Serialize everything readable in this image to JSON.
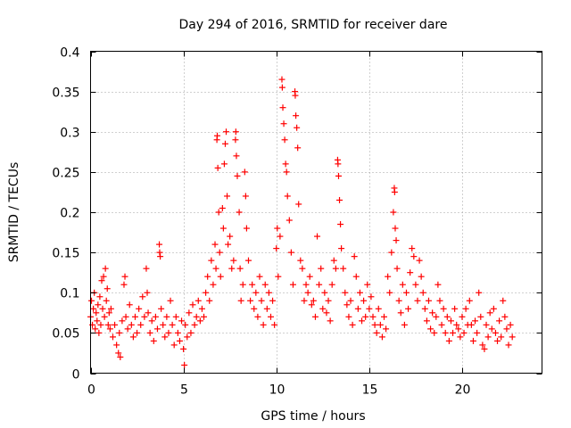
{
  "chart_data": {
    "type": "scatter",
    "title": "Day 294 of 2016, SRMTID for receiver dare",
    "xlabel": "GPS time / hours",
    "ylabel": "SRMTID / TECUs",
    "xlim": [
      0,
      24.3
    ],
    "ylim": [
      0,
      0.4
    ],
    "x_ticks": [
      0,
      5,
      10,
      15,
      20
    ],
    "x_tick_labels": [
      "0",
      "5",
      "10",
      "15",
      "20"
    ],
    "y_ticks": [
      0,
      0.05,
      0.1,
      0.15,
      0.2,
      0.25,
      0.3,
      0.35,
      0.4
    ],
    "y_tick_labels": [
      "0",
      "0.05",
      "0.1",
      "0.15",
      "0.2",
      "0.25",
      "0.3",
      "0.35",
      "0.4"
    ],
    "grid": true,
    "marker": "+",
    "series": [
      {
        "name": "SRMTID",
        "color": "#ff0000",
        "points": [
          [
            0.0,
            0.07
          ],
          [
            0.05,
            0.09
          ],
          [
            0.1,
            0.06
          ],
          [
            0.15,
            0.08
          ],
          [
            0.2,
            0.1
          ],
          [
            0.25,
            0.055
          ],
          [
            0.3,
            0.075
          ],
          [
            0.35,
            0.065
          ],
          [
            0.4,
            0.085
          ],
          [
            0.45,
            0.05
          ],
          [
            0.5,
            0.095
          ],
          [
            0.55,
            0.06
          ],
          [
            0.6,
            0.115
          ],
          [
            0.65,
            0.08
          ],
          [
            0.7,
            0.12
          ],
          [
            0.75,
            0.07
          ],
          [
            0.8,
            0.13
          ],
          [
            0.85,
            0.09
          ],
          [
            0.9,
            0.105
          ],
          [
            0.95,
            0.06
          ],
          [
            1.0,
            0.075
          ],
          [
            1.05,
            0.055
          ],
          [
            1.1,
            0.08
          ],
          [
            1.2,
            0.045
          ],
          [
            1.3,
            0.06
          ],
          [
            1.4,
            0.035
          ],
          [
            1.5,
            0.025
          ],
          [
            1.55,
            0.05
          ],
          [
            1.6,
            0.02
          ],
          [
            1.7,
            0.065
          ],
          [
            1.8,
            0.11
          ],
          [
            1.85,
            0.12
          ],
          [
            1.9,
            0.07
          ],
          [
            2.0,
            0.055
          ],
          [
            2.1,
            0.085
          ],
          [
            2.2,
            0.06
          ],
          [
            2.3,
            0.045
          ],
          [
            2.4,
            0.07
          ],
          [
            2.5,
            0.05
          ],
          [
            2.6,
            0.08
          ],
          [
            2.7,
            0.06
          ],
          [
            2.8,
            0.095
          ],
          [
            2.9,
            0.07
          ],
          [
            3.0,
            0.13
          ],
          [
            3.05,
            0.1
          ],
          [
            3.1,
            0.075
          ],
          [
            3.2,
            0.05
          ],
          [
            3.3,
            0.065
          ],
          [
            3.4,
            0.04
          ],
          [
            3.5,
            0.07
          ],
          [
            3.6,
            0.055
          ],
          [
            3.7,
            0.16
          ],
          [
            3.72,
            0.15
          ],
          [
            3.75,
            0.145
          ],
          [
            3.8,
            0.08
          ],
          [
            3.9,
            0.06
          ],
          [
            4.0,
            0.045
          ],
          [
            4.1,
            0.07
          ],
          [
            4.2,
            0.05
          ],
          [
            4.3,
            0.09
          ],
          [
            4.4,
            0.06
          ],
          [
            4.5,
            0.035
          ],
          [
            4.6,
            0.07
          ],
          [
            4.7,
            0.05
          ],
          [
            4.8,
            0.04
          ],
          [
            4.9,
            0.065
          ],
          [
            5.0,
            0.03
          ],
          [
            5.05,
            0.01
          ],
          [
            5.1,
            0.06
          ],
          [
            5.2,
            0.045
          ],
          [
            5.3,
            0.075
          ],
          [
            5.4,
            0.05
          ],
          [
            5.5,
            0.085
          ],
          [
            5.6,
            0.06
          ],
          [
            5.7,
            0.07
          ],
          [
            5.8,
            0.09
          ],
          [
            5.9,
            0.065
          ],
          [
            6.0,
            0.08
          ],
          [
            6.1,
            0.07
          ],
          [
            6.2,
            0.1
          ],
          [
            6.3,
            0.12
          ],
          [
            6.4,
            0.09
          ],
          [
            6.5,
            0.14
          ],
          [
            6.6,
            0.11
          ],
          [
            6.7,
            0.16
          ],
          [
            6.75,
            0.13
          ],
          [
            6.8,
            0.29
          ],
          [
            6.82,
            0.295
          ],
          [
            6.85,
            0.255
          ],
          [
            6.9,
            0.2
          ],
          [
            6.95,
            0.15
          ],
          [
            7.0,
            0.12
          ],
          [
            7.1,
            0.205
          ],
          [
            7.15,
            0.18
          ],
          [
            7.2,
            0.26
          ],
          [
            7.25,
            0.285
          ],
          [
            7.3,
            0.3
          ],
          [
            7.35,
            0.22
          ],
          [
            7.4,
            0.16
          ],
          [
            7.5,
            0.17
          ],
          [
            7.6,
            0.13
          ],
          [
            7.7,
            0.14
          ],
          [
            7.8,
            0.29
          ],
          [
            7.82,
            0.3
          ],
          [
            7.85,
            0.27
          ],
          [
            7.9,
            0.245
          ],
          [
            8.0,
            0.2
          ],
          [
            8.05,
            0.13
          ],
          [
            8.1,
            0.09
          ],
          [
            8.2,
            0.11
          ],
          [
            8.3,
            0.25
          ],
          [
            8.35,
            0.22
          ],
          [
            8.4,
            0.18
          ],
          [
            8.5,
            0.14
          ],
          [
            8.6,
            0.09
          ],
          [
            8.7,
            0.11
          ],
          [
            8.8,
            0.08
          ],
          [
            8.9,
            0.1
          ],
          [
            9.0,
            0.07
          ],
          [
            9.1,
            0.12
          ],
          [
            9.2,
            0.09
          ],
          [
            9.3,
            0.06
          ],
          [
            9.4,
            0.11
          ],
          [
            9.5,
            0.08
          ],
          [
            9.6,
            0.1
          ],
          [
            9.7,
            0.07
          ],
          [
            9.8,
            0.09
          ],
          [
            9.9,
            0.06
          ],
          [
            10.0,
            0.155
          ],
          [
            10.05,
            0.18
          ],
          [
            10.1,
            0.12
          ],
          [
            10.2,
            0.17
          ],
          [
            10.3,
            0.365
          ],
          [
            10.32,
            0.355
          ],
          [
            10.35,
            0.33
          ],
          [
            10.4,
            0.31
          ],
          [
            10.45,
            0.29
          ],
          [
            10.5,
            0.26
          ],
          [
            10.55,
            0.25
          ],
          [
            10.6,
            0.22
          ],
          [
            10.7,
            0.19
          ],
          [
            10.8,
            0.15
          ],
          [
            10.9,
            0.11
          ],
          [
            11.0,
            0.35
          ],
          [
            11.02,
            0.345
          ],
          [
            11.05,
            0.32
          ],
          [
            11.1,
            0.305
          ],
          [
            11.15,
            0.28
          ],
          [
            11.2,
            0.21
          ],
          [
            11.3,
            0.14
          ],
          [
            11.4,
            0.13
          ],
          [
            11.5,
            0.09
          ],
          [
            11.6,
            0.11
          ],
          [
            11.7,
            0.1
          ],
          [
            11.8,
            0.12
          ],
          [
            11.9,
            0.085
          ],
          [
            12.0,
            0.09
          ],
          [
            12.1,
            0.07
          ],
          [
            12.2,
            0.17
          ],
          [
            12.3,
            0.11
          ],
          [
            12.4,
            0.13
          ],
          [
            12.5,
            0.08
          ],
          [
            12.6,
            0.1
          ],
          [
            12.7,
            0.075
          ],
          [
            12.8,
            0.09
          ],
          [
            12.9,
            0.065
          ],
          [
            13.0,
            0.11
          ],
          [
            13.1,
            0.14
          ],
          [
            13.2,
            0.13
          ],
          [
            13.3,
            0.265
          ],
          [
            13.32,
            0.26
          ],
          [
            13.35,
            0.245
          ],
          [
            13.4,
            0.215
          ],
          [
            13.45,
            0.185
          ],
          [
            13.5,
            0.155
          ],
          [
            13.6,
            0.13
          ],
          [
            13.7,
            0.1
          ],
          [
            13.8,
            0.085
          ],
          [
            13.9,
            0.07
          ],
          [
            14.0,
            0.09
          ],
          [
            14.1,
            0.06
          ],
          [
            14.2,
            0.145
          ],
          [
            14.3,
            0.12
          ],
          [
            14.4,
            0.08
          ],
          [
            14.5,
            0.1
          ],
          [
            14.6,
            0.065
          ],
          [
            14.7,
            0.09
          ],
          [
            14.8,
            0.07
          ],
          [
            14.9,
            0.11
          ],
          [
            15.0,
            0.08
          ],
          [
            15.1,
            0.095
          ],
          [
            15.2,
            0.07
          ],
          [
            15.3,
            0.06
          ],
          [
            15.4,
            0.05
          ],
          [
            15.5,
            0.08
          ],
          [
            15.6,
            0.06
          ],
          [
            15.7,
            0.045
          ],
          [
            15.8,
            0.07
          ],
          [
            15.9,
            0.055
          ],
          [
            16.0,
            0.12
          ],
          [
            16.1,
            0.1
          ],
          [
            16.2,
            0.15
          ],
          [
            16.3,
            0.2
          ],
          [
            16.35,
            0.23
          ],
          [
            16.37,
            0.225
          ],
          [
            16.4,
            0.18
          ],
          [
            16.45,
            0.165
          ],
          [
            16.5,
            0.13
          ],
          [
            16.6,
            0.09
          ],
          [
            16.7,
            0.075
          ],
          [
            16.8,
            0.11
          ],
          [
            16.9,
            0.06
          ],
          [
            17.0,
            0.1
          ],
          [
            17.1,
            0.08
          ],
          [
            17.2,
            0.125
          ],
          [
            17.3,
            0.155
          ],
          [
            17.4,
            0.145
          ],
          [
            17.5,
            0.11
          ],
          [
            17.6,
            0.09
          ],
          [
            17.7,
            0.14
          ],
          [
            17.8,
            0.12
          ],
          [
            17.9,
            0.1
          ],
          [
            18.0,
            0.08
          ],
          [
            18.1,
            0.065
          ],
          [
            18.2,
            0.09
          ],
          [
            18.3,
            0.055
          ],
          [
            18.4,
            0.075
          ],
          [
            18.5,
            0.05
          ],
          [
            18.6,
            0.07
          ],
          [
            18.7,
            0.11
          ],
          [
            18.8,
            0.09
          ],
          [
            18.9,
            0.06
          ],
          [
            19.0,
            0.08
          ],
          [
            19.1,
            0.05
          ],
          [
            19.2,
            0.07
          ],
          [
            19.3,
            0.04
          ],
          [
            19.4,
            0.065
          ],
          [
            19.5,
            0.05
          ],
          [
            19.6,
            0.08
          ],
          [
            19.7,
            0.06
          ],
          [
            19.8,
            0.055
          ],
          [
            19.9,
            0.045
          ],
          [
            20.0,
            0.07
          ],
          [
            20.1,
            0.05
          ],
          [
            20.2,
            0.08
          ],
          [
            20.3,
            0.06
          ],
          [
            20.4,
            0.09
          ],
          [
            20.5,
            0.06
          ],
          [
            20.6,
            0.04
          ],
          [
            20.7,
            0.065
          ],
          [
            20.8,
            0.05
          ],
          [
            20.9,
            0.1
          ],
          [
            21.0,
            0.07
          ],
          [
            21.1,
            0.035
          ],
          [
            21.2,
            0.03
          ],
          [
            21.3,
            0.06
          ],
          [
            21.4,
            0.045
          ],
          [
            21.5,
            0.075
          ],
          [
            21.6,
            0.055
          ],
          [
            21.7,
            0.08
          ],
          [
            21.8,
            0.05
          ],
          [
            21.9,
            0.04
          ],
          [
            22.0,
            0.065
          ],
          [
            22.1,
            0.045
          ],
          [
            22.2,
            0.09
          ],
          [
            22.3,
            0.07
          ],
          [
            22.4,
            0.055
          ],
          [
            22.5,
            0.035
          ],
          [
            22.6,
            0.06
          ],
          [
            22.7,
            0.045
          ]
        ]
      }
    ]
  }
}
